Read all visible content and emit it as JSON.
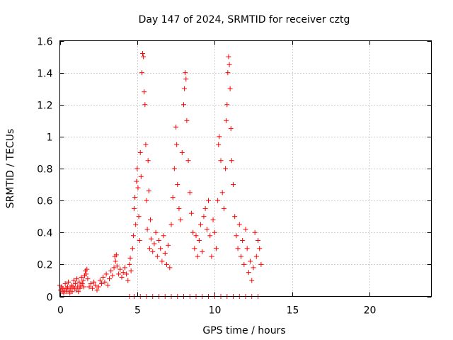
{
  "chart_data": {
    "type": "scatter",
    "title": "Day 147 of 2024, SRMTID for receiver cztg",
    "xlabel": "GPS time / hours",
    "ylabel": "SRMTID / TECUs",
    "xlim": [
      0,
      24
    ],
    "ylim": [
      0,
      1.6
    ],
    "xticks": [
      0,
      5,
      10,
      15,
      20
    ],
    "xtick_labels": [
      "0",
      "5",
      "10",
      "15",
      "20"
    ],
    "yticks": [
      0,
      0.2,
      0.4,
      0.6,
      0.8,
      1.0,
      1.2,
      1.4,
      1.6
    ],
    "ytick_labels": [
      "0",
      "0.2",
      "0.4",
      "0.6",
      "0.8",
      "1",
      "1.2",
      "1.4",
      "1.6"
    ],
    "grid": true,
    "marker": "+",
    "color": "#ff0000",
    "series": [
      {
        "name": "SRMTID",
        "points": [
          [
            0.0,
            0.07
          ],
          [
            0.05,
            0.04
          ],
          [
            0.1,
            0.06
          ],
          [
            0.15,
            0.03
          ],
          [
            0.2,
            0.05
          ],
          [
            0.25,
            0.02
          ],
          [
            0.3,
            0.04
          ],
          [
            0.35,
            0.08
          ],
          [
            0.4,
            0.05
          ],
          [
            0.45,
            0.03
          ],
          [
            0.5,
            0.06
          ],
          [
            0.55,
            0.09
          ],
          [
            0.6,
            0.04
          ],
          [
            0.65,
            0.02
          ],
          [
            0.7,
            0.05
          ],
          [
            0.75,
            0.07
          ],
          [
            0.8,
            0.03
          ],
          [
            0.85,
            0.06
          ],
          [
            0.9,
            0.1
          ],
          [
            0.95,
            0.05
          ],
          [
            1.0,
            0.08
          ],
          [
            1.05,
            0.04
          ],
          [
            1.1,
            0.11
          ],
          [
            1.15,
            0.06
          ],
          [
            1.2,
            0.03
          ],
          [
            1.25,
            0.09
          ],
          [
            1.3,
            0.05
          ],
          [
            1.35,
            0.07
          ],
          [
            1.4,
            0.12
          ],
          [
            1.45,
            0.08
          ],
          [
            1.5,
            0.1
          ],
          [
            1.55,
            0.06
          ],
          [
            1.6,
            0.13
          ],
          [
            1.65,
            0.16
          ],
          [
            1.7,
            0.14
          ],
          [
            1.75,
            0.17
          ],
          [
            1.8,
            0.11
          ],
          [
            1.9,
            0.06
          ],
          [
            2.0,
            0.08
          ],
          [
            2.1,
            0.05
          ],
          [
            2.2,
            0.09
          ],
          [
            2.3,
            0.07
          ],
          [
            2.4,
            0.04
          ],
          [
            2.5,
            0.06
          ],
          [
            2.6,
            0.1
          ],
          [
            2.7,
            0.08
          ],
          [
            2.8,
            0.12
          ],
          [
            2.9,
            0.09
          ],
          [
            3.0,
            0.14
          ],
          [
            3.1,
            0.07
          ],
          [
            3.2,
            0.11
          ],
          [
            3.3,
            0.16
          ],
          [
            3.4,
            0.13
          ],
          [
            3.5,
            0.18
          ],
          [
            3.55,
            0.25
          ],
          [
            3.6,
            0.22
          ],
          [
            3.65,
            0.26
          ],
          [
            3.7,
            0.19
          ],
          [
            3.8,
            0.14
          ],
          [
            3.9,
            0.17
          ],
          [
            4.0,
            0.12
          ],
          [
            4.1,
            0.15
          ],
          [
            4.2,
            0.18
          ],
          [
            4.3,
            0.14
          ],
          [
            4.4,
            0.1
          ],
          [
            4.5,
            0.2
          ],
          [
            4.55,
            0.24
          ],
          [
            4.6,
            0.16
          ],
          [
            4.7,
            0.3
          ],
          [
            4.75,
            0.38
          ],
          [
            4.8,
            0.55
          ],
          [
            4.85,
            0.62
          ],
          [
            4.9,
            0.45
          ],
          [
            4.95,
            0.72
          ],
          [
            5.0,
            0.8
          ],
          [
            5.05,
            0.68
          ],
          [
            5.1,
            0.5
          ],
          [
            5.15,
            0.35
          ],
          [
            5.2,
            0.9
          ],
          [
            5.25,
            0.75
          ],
          [
            5.3,
            1.4
          ],
          [
            5.35,
            1.52
          ],
          [
            5.4,
            1.5
          ],
          [
            5.45,
            1.28
          ],
          [
            5.5,
            1.2
          ],
          [
            5.55,
            0.95
          ],
          [
            5.6,
            0.6
          ],
          [
            5.65,
            0.42
          ],
          [
            5.7,
            0.85
          ],
          [
            5.75,
            0.66
          ],
          [
            5.8,
            0.3
          ],
          [
            5.85,
            0.48
          ],
          [
            5.9,
            0.36
          ],
          [
            6.0,
            0.28
          ],
          [
            6.1,
            0.33
          ],
          [
            6.2,
            0.4
          ],
          [
            6.3,
            0.25
          ],
          [
            6.4,
            0.35
          ],
          [
            6.5,
            0.3
          ],
          [
            6.6,
            0.22
          ],
          [
            6.7,
            0.38
          ],
          [
            6.8,
            0.27
          ],
          [
            6.9,
            0.2
          ],
          [
            7.0,
            0.32
          ],
          [
            7.1,
            0.18
          ],
          [
            7.2,
            0.45
          ],
          [
            7.3,
            0.62
          ],
          [
            7.4,
            0.8
          ],
          [
            7.5,
            1.06
          ],
          [
            7.55,
            0.95
          ],
          [
            7.6,
            0.7
          ],
          [
            7.7,
            0.55
          ],
          [
            7.8,
            0.48
          ],
          [
            7.9,
            0.9
          ],
          [
            8.0,
            1.2
          ],
          [
            8.05,
            1.3
          ],
          [
            8.1,
            1.4
          ],
          [
            8.15,
            1.36
          ],
          [
            8.2,
            1.1
          ],
          [
            8.3,
            0.85
          ],
          [
            8.4,
            0.65
          ],
          [
            8.5,
            0.52
          ],
          [
            8.6,
            0.4
          ],
          [
            8.7,
            0.3
          ],
          [
            8.8,
            0.38
          ],
          [
            8.9,
            0.25
          ],
          [
            9.0,
            0.35
          ],
          [
            9.1,
            0.45
          ],
          [
            9.2,
            0.28
          ],
          [
            9.3,
            0.5
          ],
          [
            9.4,
            0.55
          ],
          [
            9.5,
            0.42
          ],
          [
            9.6,
            0.6
          ],
          [
            9.7,
            0.38
          ],
          [
            9.8,
            0.25
          ],
          [
            9.9,
            0.48
          ],
          [
            10.0,
            0.4
          ],
          [
            10.1,
            0.3
          ],
          [
            10.2,
            0.6
          ],
          [
            10.25,
            0.95
          ],
          [
            10.3,
            1.0
          ],
          [
            10.4,
            0.85
          ],
          [
            10.5,
            0.65
          ],
          [
            10.6,
            0.55
          ],
          [
            10.7,
            0.8
          ],
          [
            10.75,
            1.1
          ],
          [
            10.8,
            1.2
          ],
          [
            10.85,
            1.4
          ],
          [
            10.9,
            1.5
          ],
          [
            10.95,
            1.45
          ],
          [
            11.0,
            1.3
          ],
          [
            11.05,
            1.05
          ],
          [
            11.1,
            0.85
          ],
          [
            11.2,
            0.7
          ],
          [
            11.3,
            0.5
          ],
          [
            11.4,
            0.38
          ],
          [
            11.5,
            0.3
          ],
          [
            11.6,
            0.45
          ],
          [
            11.7,
            0.25
          ],
          [
            11.8,
            0.35
          ],
          [
            11.9,
            0.2
          ],
          [
            12.0,
            0.42
          ],
          [
            12.1,
            0.3
          ],
          [
            12.2,
            0.15
          ],
          [
            12.3,
            0.22
          ],
          [
            12.4,
            0.1
          ],
          [
            12.5,
            0.18
          ],
          [
            12.6,
            0.4
          ],
          [
            12.7,
            0.25
          ],
          [
            12.8,
            0.35
          ],
          [
            12.9,
            0.3
          ],
          [
            13.0,
            0.2
          ],
          [
            4.5,
            0.0
          ],
          [
            4.8,
            0.0
          ],
          [
            5.2,
            0.0
          ],
          [
            5.6,
            0.0
          ],
          [
            6.0,
            0.0
          ],
          [
            6.4,
            0.0
          ],
          [
            6.8,
            0.0
          ],
          [
            7.2,
            0.0
          ],
          [
            7.6,
            0.0
          ],
          [
            8.0,
            0.0
          ],
          [
            8.4,
            0.0
          ],
          [
            8.8,
            0.0
          ],
          [
            9.2,
            0.0
          ],
          [
            9.6,
            0.0
          ],
          [
            10.0,
            0.0
          ],
          [
            10.4,
            0.0
          ],
          [
            10.8,
            0.0
          ],
          [
            11.2,
            0.0
          ],
          [
            11.6,
            0.0
          ],
          [
            12.0,
            0.0
          ],
          [
            12.4,
            0.0
          ],
          [
            12.8,
            0.0
          ]
        ]
      }
    ]
  }
}
